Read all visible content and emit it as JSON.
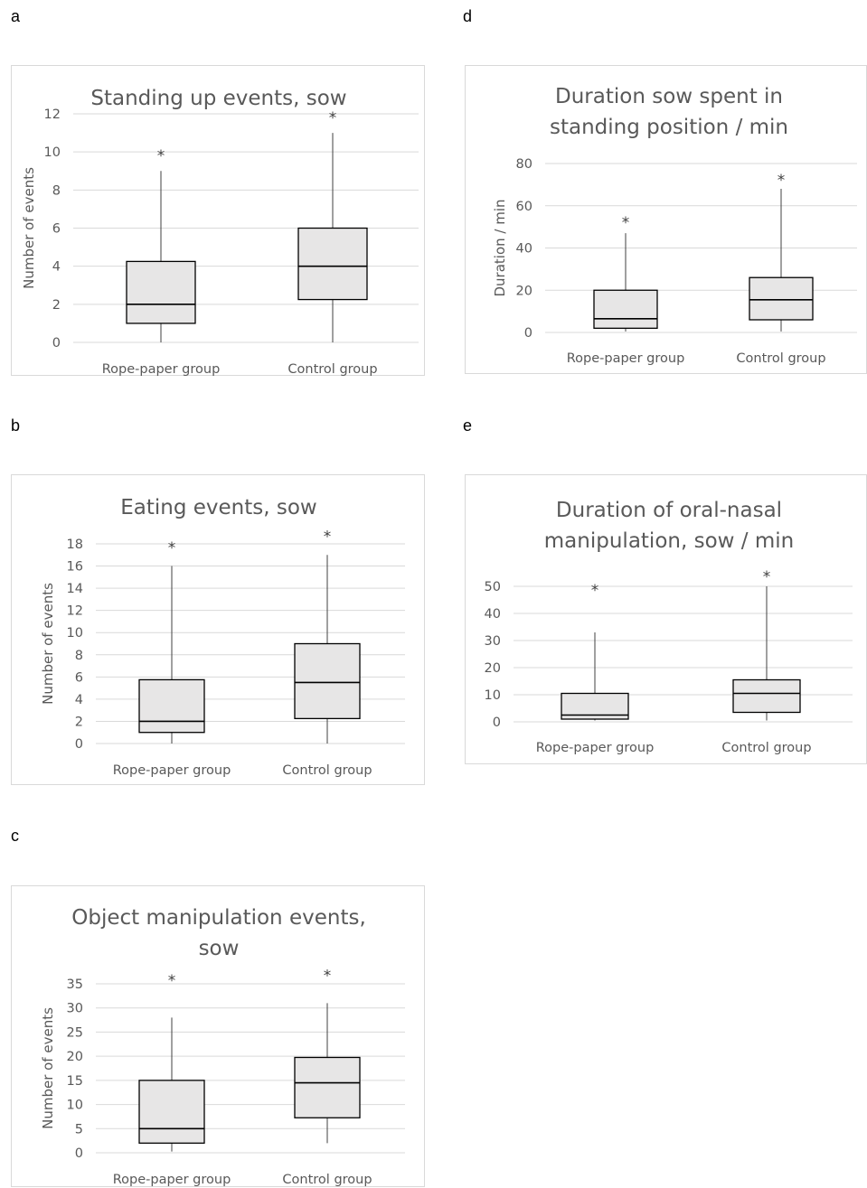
{
  "chart_data": [
    {
      "panel": "a",
      "type": "box",
      "title": [
        "Standing up events, sow"
      ],
      "ylabel": "Number of events",
      "ylim": [
        0,
        12
      ],
      "yticks": [
        0,
        2,
        4,
        6,
        8,
        10,
        12
      ],
      "categories": [
        "Rope-paper group",
        "Control group"
      ],
      "boxes": [
        {
          "min": 0,
          "q1": 1,
          "median": 2,
          "q3": 4.25,
          "max": 9,
          "outlier": 10
        },
        {
          "min": 0,
          "q1": 2.25,
          "median": 4,
          "q3": 6,
          "max": 11,
          "outlier": 12
        }
      ],
      "outlier_marker": "*",
      "grid": true
    },
    {
      "panel": "b",
      "type": "box",
      "title": [
        "Eating events, sow"
      ],
      "ylabel": "Number of events",
      "ylim": [
        0,
        18
      ],
      "yticks": [
        0,
        2,
        4,
        6,
        8,
        10,
        12,
        14,
        16,
        18
      ],
      "categories": [
        "Rope-paper group",
        "Control group"
      ],
      "boxes": [
        {
          "min": 0,
          "q1": 1,
          "median": 2,
          "q3": 5.75,
          "max": 16,
          "outlier": 18
        },
        {
          "min": 0,
          "q1": 2.25,
          "median": 5.5,
          "q3": 9,
          "max": 17,
          "outlier": 19
        }
      ],
      "outlier_marker": "*",
      "grid": true
    },
    {
      "panel": "c",
      "type": "box",
      "title": [
        "Object manipulation events,",
        "sow"
      ],
      "ylabel": "Number of events",
      "ylim": [
        0,
        35
      ],
      "yticks": [
        0,
        5,
        10,
        15,
        20,
        25,
        30,
        35
      ],
      "categories": [
        "Rope-paper group",
        "Control group"
      ],
      "boxes": [
        {
          "min": 0.25,
          "q1": 2,
          "median": 5,
          "q3": 15,
          "max": 28,
          "outlier": 36.5
        },
        {
          "min": 2,
          "q1": 7.25,
          "median": 14.5,
          "q3": 19.75,
          "max": 31,
          "outlier": 37.5
        }
      ],
      "outlier_marker": "*",
      "grid": true
    },
    {
      "panel": "d",
      "type": "box",
      "title": [
        "Duration sow spent in",
        "standing position / min"
      ],
      "ylabel": "Duration / min",
      "ylim": [
        0,
        80
      ],
      "yticks": [
        0,
        20,
        40,
        60,
        80
      ],
      "categories": [
        "Rope-paper group",
        "Control group"
      ],
      "boxes": [
        {
          "min": 0.5,
          "q1": 2,
          "median": 6.5,
          "q3": 20,
          "max": 47,
          "outlier": 54
        },
        {
          "min": 0.5,
          "q1": 6,
          "median": 15.5,
          "q3": 26,
          "max": 68,
          "outlier": 74
        }
      ],
      "outlier_marker": "*",
      "grid": true
    },
    {
      "panel": "e",
      "type": "box",
      "title": [
        "Duration of oral-nasal",
        "manipulation, sow / min"
      ],
      "ylabel": "",
      "ylim": [
        0,
        50
      ],
      "yticks": [
        0,
        10,
        20,
        30,
        40,
        50
      ],
      "categories": [
        "Rope-paper group",
        "Control group"
      ],
      "boxes": [
        {
          "min": 0.5,
          "q1": 1,
          "median": 2.5,
          "q3": 10.5,
          "max": 33,
          "outlier": 50
        },
        {
          "min": 0.5,
          "q1": 3.5,
          "median": 10.5,
          "q3": 15.5,
          "max": 50,
          "outlier": 55
        }
      ],
      "outlier_marker": "*",
      "grid": true
    }
  ]
}
